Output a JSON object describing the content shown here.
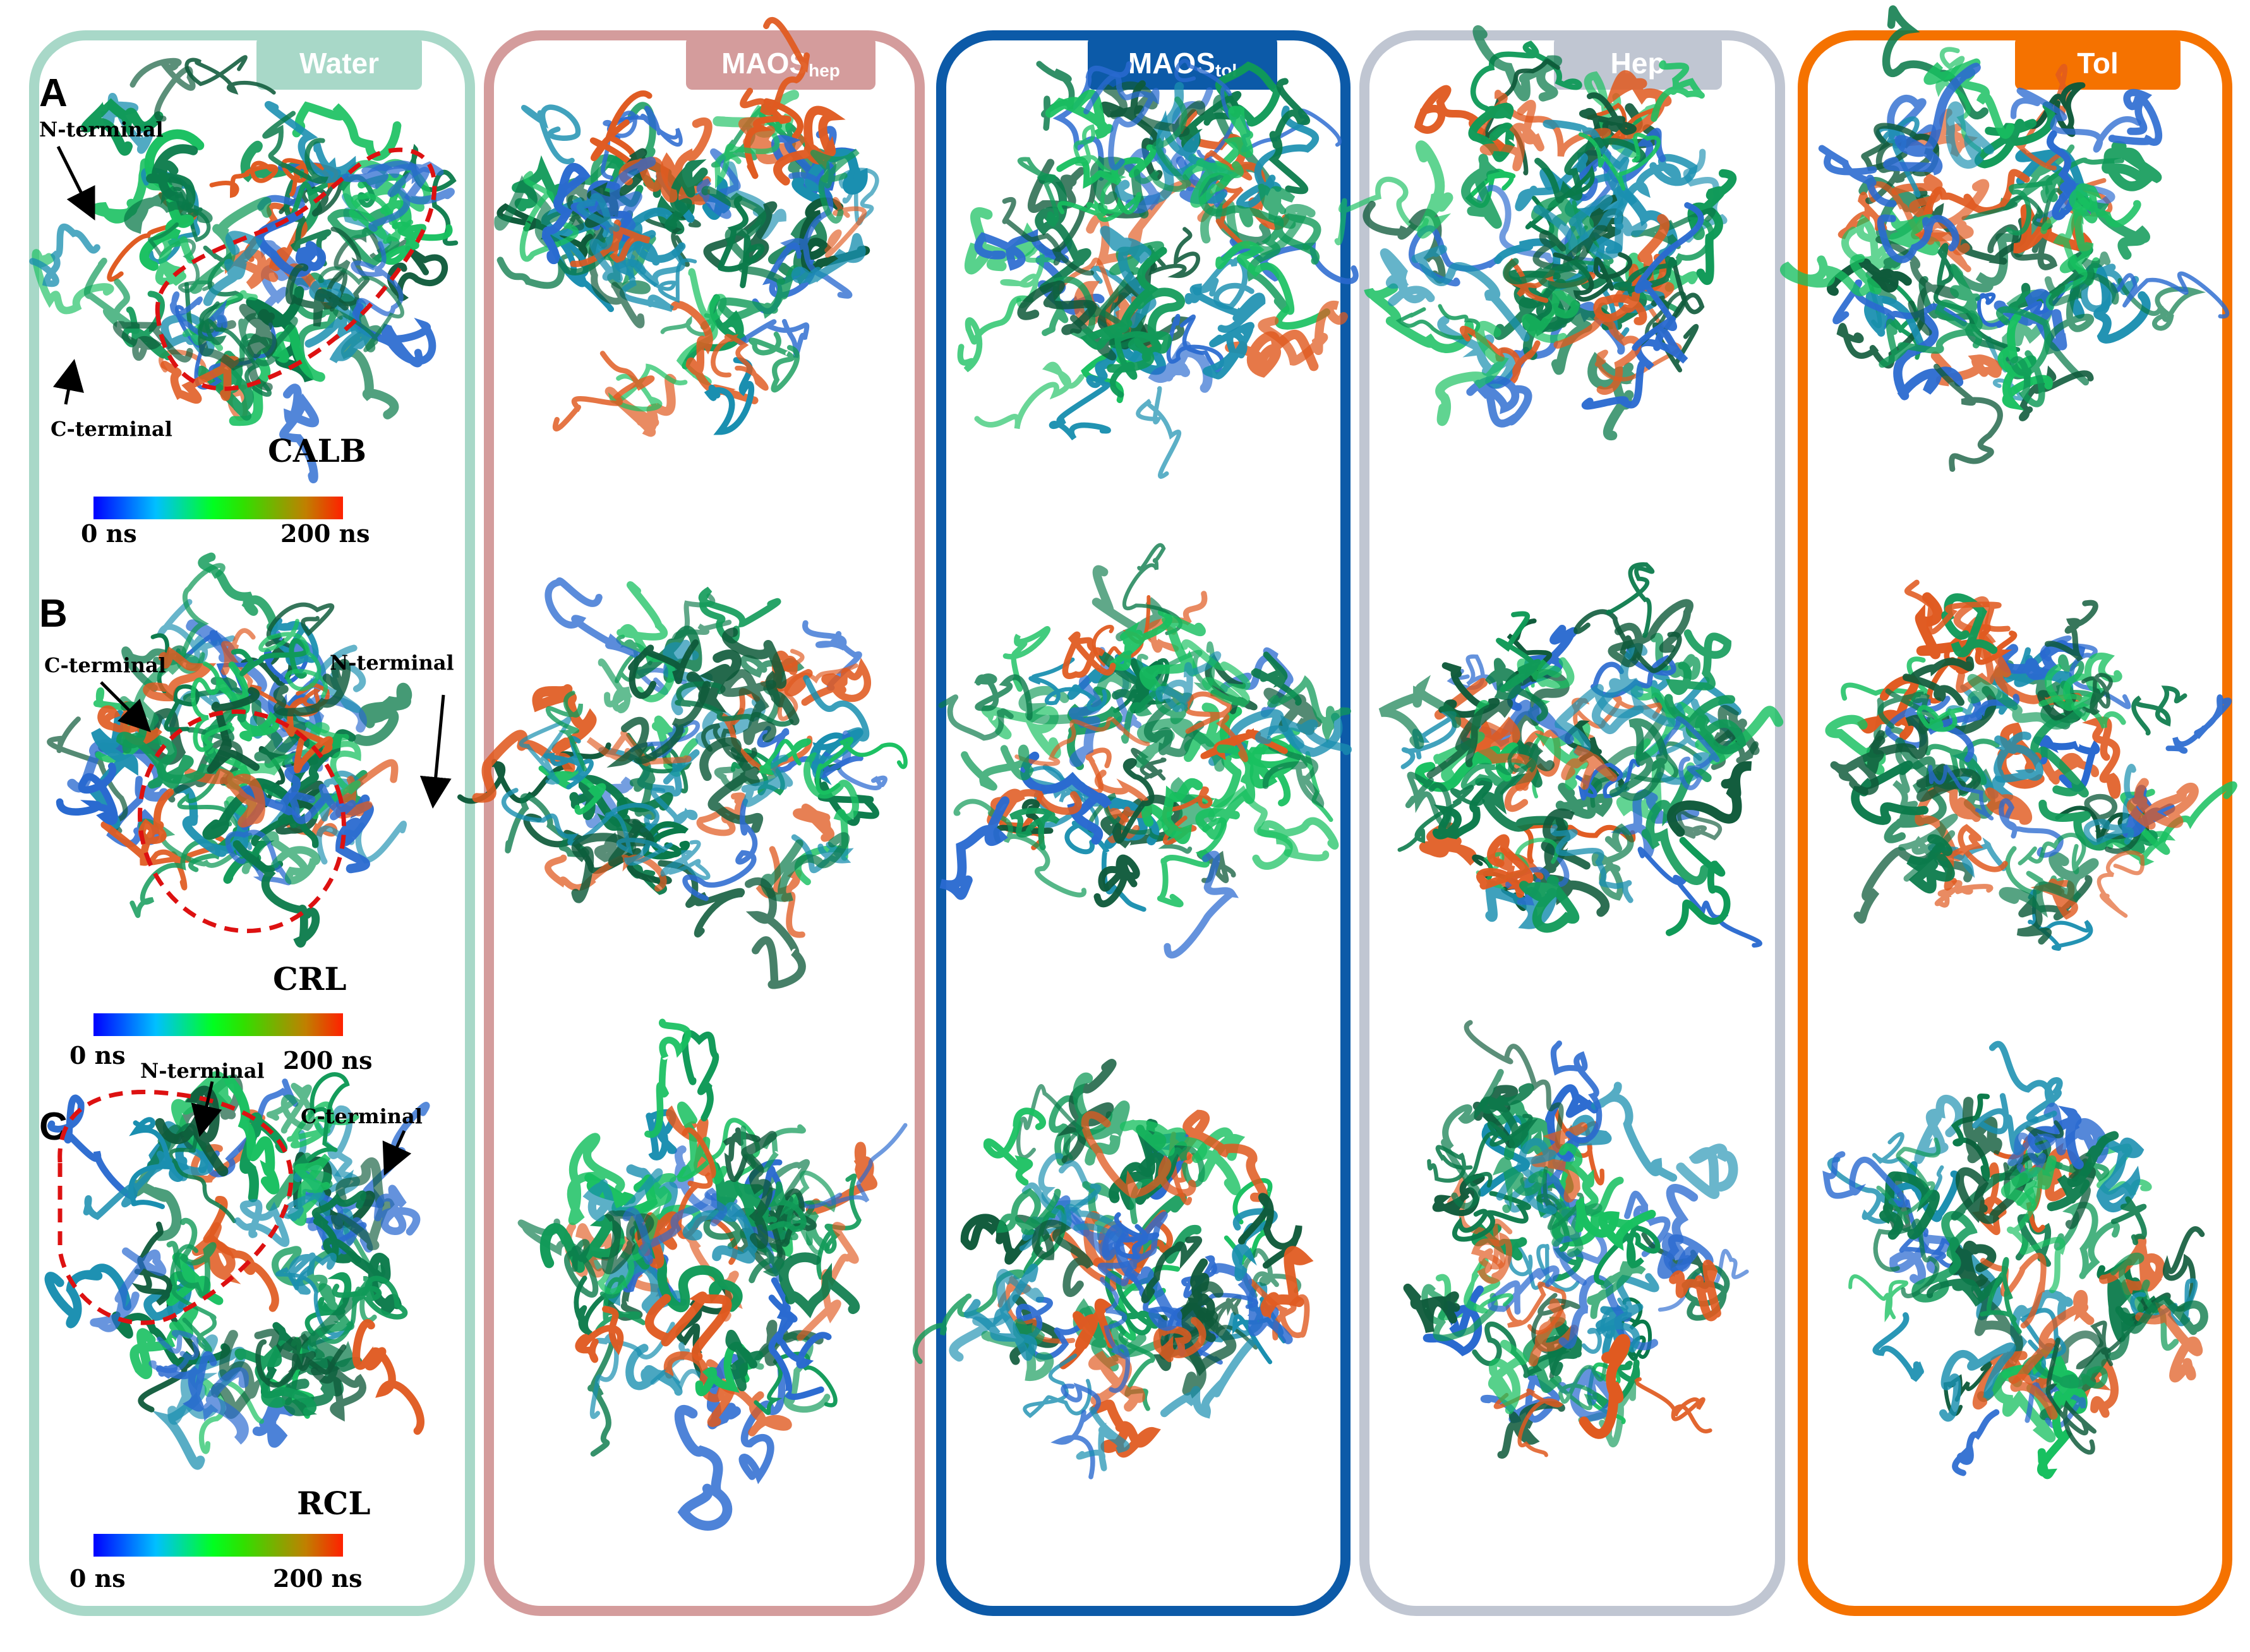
{
  "panels": [
    {
      "id": "water",
      "label": "Water",
      "sub": "",
      "border": "#a8d8c8",
      "tag": "#a8d8c8"
    },
    {
      "id": "maos_hep",
      "label": "MAOS",
      "sub": "hep",
      "border": "#d49c9c",
      "tag": "#d49c9c"
    },
    {
      "id": "maos_tol",
      "label": "MAOS",
      "sub": "tol",
      "border": "#0c5aa8",
      "tag": "#0c5aa8"
    },
    {
      "id": "hep",
      "label": "Hep",
      "sub": "",
      "border": "#c0c6d2",
      "tag": "#c0c6d2"
    },
    {
      "id": "tol",
      "label": "Tol",
      "sub": "",
      "border": "#f57200",
      "tag": "#f57200"
    }
  ],
  "rows": [
    {
      "letter": "A",
      "protein": "CALB"
    },
    {
      "letter": "B",
      "protein": "CRL"
    },
    {
      "letter": "C",
      "protein": "RCL"
    }
  ],
  "annotations": {
    "n_terminal": "N-terminal",
    "c_terminal": "C-terminal"
  },
  "colorbar": {
    "start_label": "0 ns",
    "end_label": "200 ns",
    "colors": [
      "#0000ff",
      "#00c0ff",
      "#00ff20",
      "#30e000",
      "#c08000",
      "#ff2000"
    ]
  },
  "highlight_color": "#dd1111",
  "ribbon_colors": [
    "#0a7a4a",
    "#109a58",
    "#1a8fb0",
    "#2a6ad0",
    "#e05a20",
    "#18c060",
    "#0e5a3a"
  ]
}
